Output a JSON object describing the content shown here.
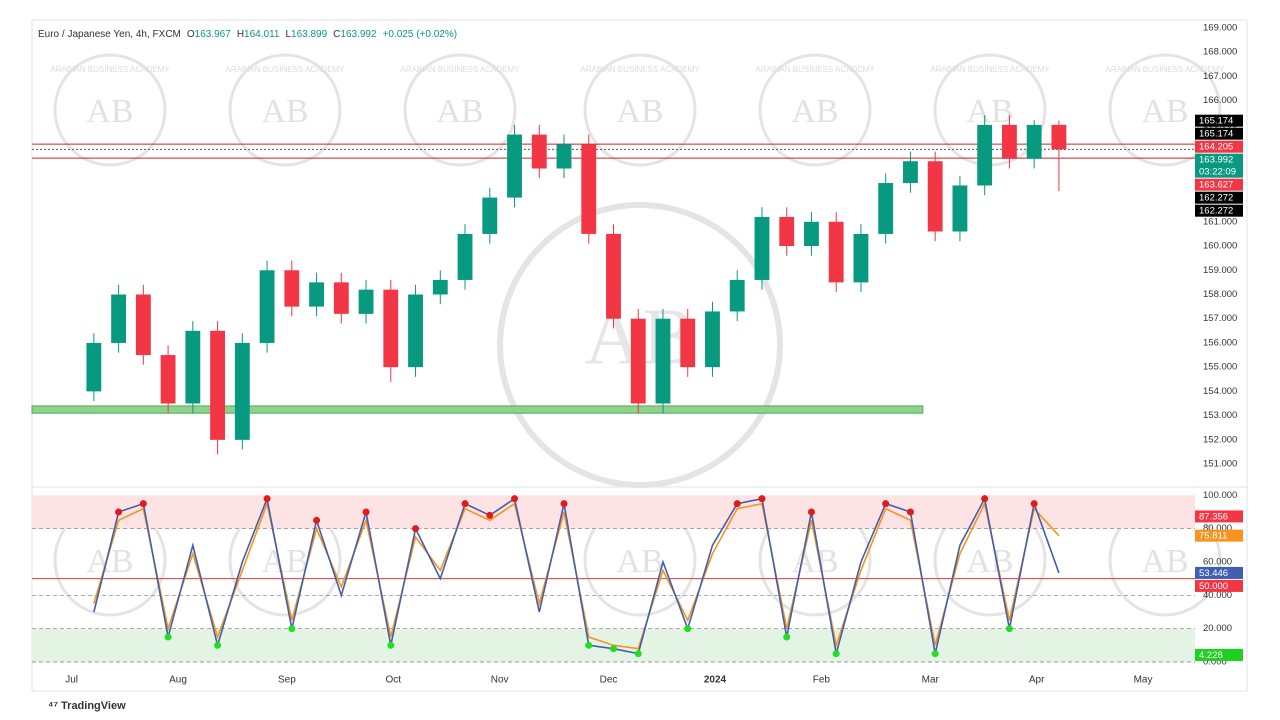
{
  "header": {
    "symbol": "Euro / Japanese Yen, 4h, FXCM",
    "ohlc": [
      {
        "key": "O",
        "value": 163.967
      },
      {
        "key": "H",
        "value": 164.011
      },
      {
        "key": "L",
        "value": 163.899
      },
      {
        "key": "C",
        "value": 163.992
      }
    ],
    "change": "+0.025 (+0.02%)"
  },
  "watermark": "ARABIAN BUSINESS ACADEMY",
  "logo": "AB",
  "footer": "TradingView",
  "chart_data": [
    {
      "type": "candlestick",
      "xlim": [
        -2.5,
        44.5
      ],
      "ylim": [
        150.26,
        169.33
      ],
      "xticks": [
        {
          "value": -0.9,
          "label": "Jul"
        },
        {
          "value": 3.4,
          "label": "Aug"
        },
        {
          "value": 7.8,
          "label": "Sep"
        },
        {
          "value": 12.1,
          "label": "Oct"
        },
        {
          "value": 16.4,
          "label": "Nov"
        },
        {
          "value": 20.8,
          "label": "Dec"
        },
        {
          "value": 25.1,
          "label": "2024"
        },
        {
          "value": 29.4,
          "label": "Feb"
        },
        {
          "value": 33.8,
          "label": "Mar"
        },
        {
          "value": 38.1,
          "label": "Apr"
        },
        {
          "value": 42.4,
          "label": "May"
        }
      ],
      "yticks": [
        {
          "value": 151,
          "label": "151.000"
        },
        {
          "value": 152,
          "label": "152.000"
        },
        {
          "value": 153,
          "label": "153.000"
        },
        {
          "value": 154,
          "label": "154.000"
        },
        {
          "value": 155,
          "label": "155.000"
        },
        {
          "value": 156,
          "label": "156.000"
        },
        {
          "value": 157,
          "label": "157.000"
        },
        {
          "value": 158,
          "label": "158.000"
        },
        {
          "value": 159,
          "label": "159.000"
        },
        {
          "value": 160,
          "label": "160.000"
        },
        {
          "value": 161,
          "label": "161.000"
        },
        {
          "value": 162,
          "label": "162.000"
        },
        {
          "value": 163,
          "label": "163.000"
        },
        {
          "value": 164,
          "label": "164.000"
        },
        {
          "value": 165,
          "label": "165.000"
        },
        {
          "value": 166,
          "label": "166.000"
        },
        {
          "value": 167,
          "label": "167.000"
        },
        {
          "value": 168,
          "label": "168.000"
        },
        {
          "value": 169,
          "label": "169.000"
        }
      ],
      "up_color": "#089981",
      "down_color": "#f23645",
      "open": [
        154.0,
        156.0,
        158.0,
        155.5,
        153.5,
        156.5,
        152.0,
        156.0,
        159.0,
        157.5,
        158.5,
        157.2,
        158.2,
        155.0,
        158.0,
        158.6,
        160.5,
        162.0,
        164.6,
        163.2,
        164.2,
        160.5,
        157.0,
        153.5,
        157.0,
        155.0,
        157.3,
        158.6,
        161.2,
        160.0,
        161.0,
        158.5,
        160.5,
        162.6,
        163.5,
        160.6,
        162.5,
        165.0,
        163.6,
        165.0
      ],
      "high": [
        156.4,
        158.4,
        158.4,
        155.9,
        156.9,
        156.9,
        156.4,
        159.4,
        159.4,
        158.9,
        158.9,
        158.6,
        158.6,
        158.4,
        159.0,
        160.9,
        162.4,
        165.0,
        165.0,
        164.6,
        164.6,
        160.9,
        157.4,
        157.4,
        157.4,
        157.7,
        159.0,
        161.6,
        161.6,
        161.4,
        161.4,
        160.9,
        163.0,
        163.9,
        163.9,
        162.9,
        165.4,
        165.4,
        165.2,
        165.174
      ],
      "low": [
        153.6,
        155.6,
        155.1,
        153.1,
        153.1,
        151.4,
        151.6,
        155.6,
        157.1,
        157.1,
        156.8,
        156.8,
        154.4,
        154.6,
        157.6,
        158.2,
        160.1,
        161.6,
        162.8,
        162.8,
        160.1,
        156.6,
        153.1,
        153.1,
        154.6,
        154.6,
        156.9,
        158.2,
        159.6,
        159.6,
        158.1,
        158.1,
        160.1,
        162.2,
        160.2,
        160.2,
        162.1,
        163.2,
        163.2,
        162.272
      ],
      "close": [
        156.0,
        158.0,
        155.5,
        153.5,
        156.5,
        152.0,
        156.0,
        159.0,
        157.5,
        158.5,
        157.2,
        158.2,
        155.0,
        158.0,
        158.6,
        160.5,
        162.0,
        164.6,
        163.2,
        164.2,
        160.5,
        157.0,
        153.5,
        157.0,
        155.0,
        157.3,
        158.6,
        161.2,
        160.0,
        161.0,
        158.5,
        160.5,
        162.6,
        163.5,
        160.6,
        162.5,
        165.0,
        163.6,
        165.0,
        163.992
      ],
      "levels": [
        {
          "value": 164.205,
          "color": "#c62828",
          "dash": false
        },
        {
          "value": 163.627,
          "color": "#c62828",
          "dash": false
        },
        {
          "value": 163.992,
          "color": "#555555",
          "dash": true
        }
      ],
      "zone": {
        "range": [
          153.1,
          153.4
        ],
        "x_range": [
          -2.5,
          33.5
        ],
        "color": "#8fd18f"
      },
      "price_labels": [
        {
          "value": 165.174,
          "color": "#000000"
        },
        {
          "value": 165.174,
          "color": "#000000"
        },
        {
          "value": 164.205,
          "color": "#f23645"
        },
        {
          "value": 163.992,
          "color": "#089981",
          "note": "03:22:09"
        },
        {
          "value": 163.627,
          "color": "#f23645"
        },
        {
          "value": 162.272,
          "color": "#000000"
        },
        {
          "value": 162.272,
          "color": "#000000"
        }
      ]
    },
    {
      "type": "line",
      "xlim": [
        -2.5,
        44.5
      ],
      "ylim": [
        0,
        102
      ],
      "yticks": [
        {
          "value": 0,
          "label": "0.000"
        },
        {
          "value": 20,
          "label": "20.000"
        },
        {
          "value": 40,
          "label": "40.000"
        },
        {
          "value": 60,
          "label": "60.000"
        },
        {
          "value": 80,
          "label": "80.000"
        },
        {
          "value": 100,
          "label": "100.000"
        }
      ],
      "bands": [
        {
          "range": [
            80,
            100
          ],
          "color": "#fde3e3"
        },
        {
          "range": [
            0,
            20
          ],
          "color": "#e4f4e4"
        }
      ],
      "levels": [
        {
          "value": 50,
          "color": "#e53935"
        }
      ],
      "markers": true,
      "series": [
        {
          "color": "#f7931e",
          "values": [
            35,
            85,
            92,
            20,
            65,
            15,
            55,
            95,
            25,
            80,
            45,
            85,
            15,
            75,
            55,
            92,
            85,
            95,
            35,
            90,
            15,
            10,
            8,
            55,
            25,
            65,
            92,
            95,
            20,
            85,
            10,
            55,
            92,
            85,
            10,
            65,
            95,
            25,
            92,
            75.811
          ]
        },
        {
          "color": "#3f5fb0",
          "values": [
            30,
            90,
            95,
            15,
            70,
            10,
            60,
            98,
            20,
            85,
            40,
            90,
            10,
            80,
            50,
            95,
            88,
            98,
            30,
            95,
            10,
            8,
            5,
            60,
            20,
            70,
            95,
            98,
            15,
            90,
            5,
            60,
            95,
            90,
            5,
            70,
            98,
            20,
            95,
            53.446
          ]
        }
      ],
      "price_labels": [
        {
          "value": 87.356,
          "color": "#f23645"
        },
        {
          "value": 75.811,
          "color": "#f7931e"
        },
        {
          "value": 53.446,
          "color": "#3f5fb0"
        },
        {
          "value": 50,
          "label": "50.000",
          "color": "#f23645"
        },
        {
          "value": 4.228,
          "color": "#1fd11f"
        }
      ]
    }
  ]
}
